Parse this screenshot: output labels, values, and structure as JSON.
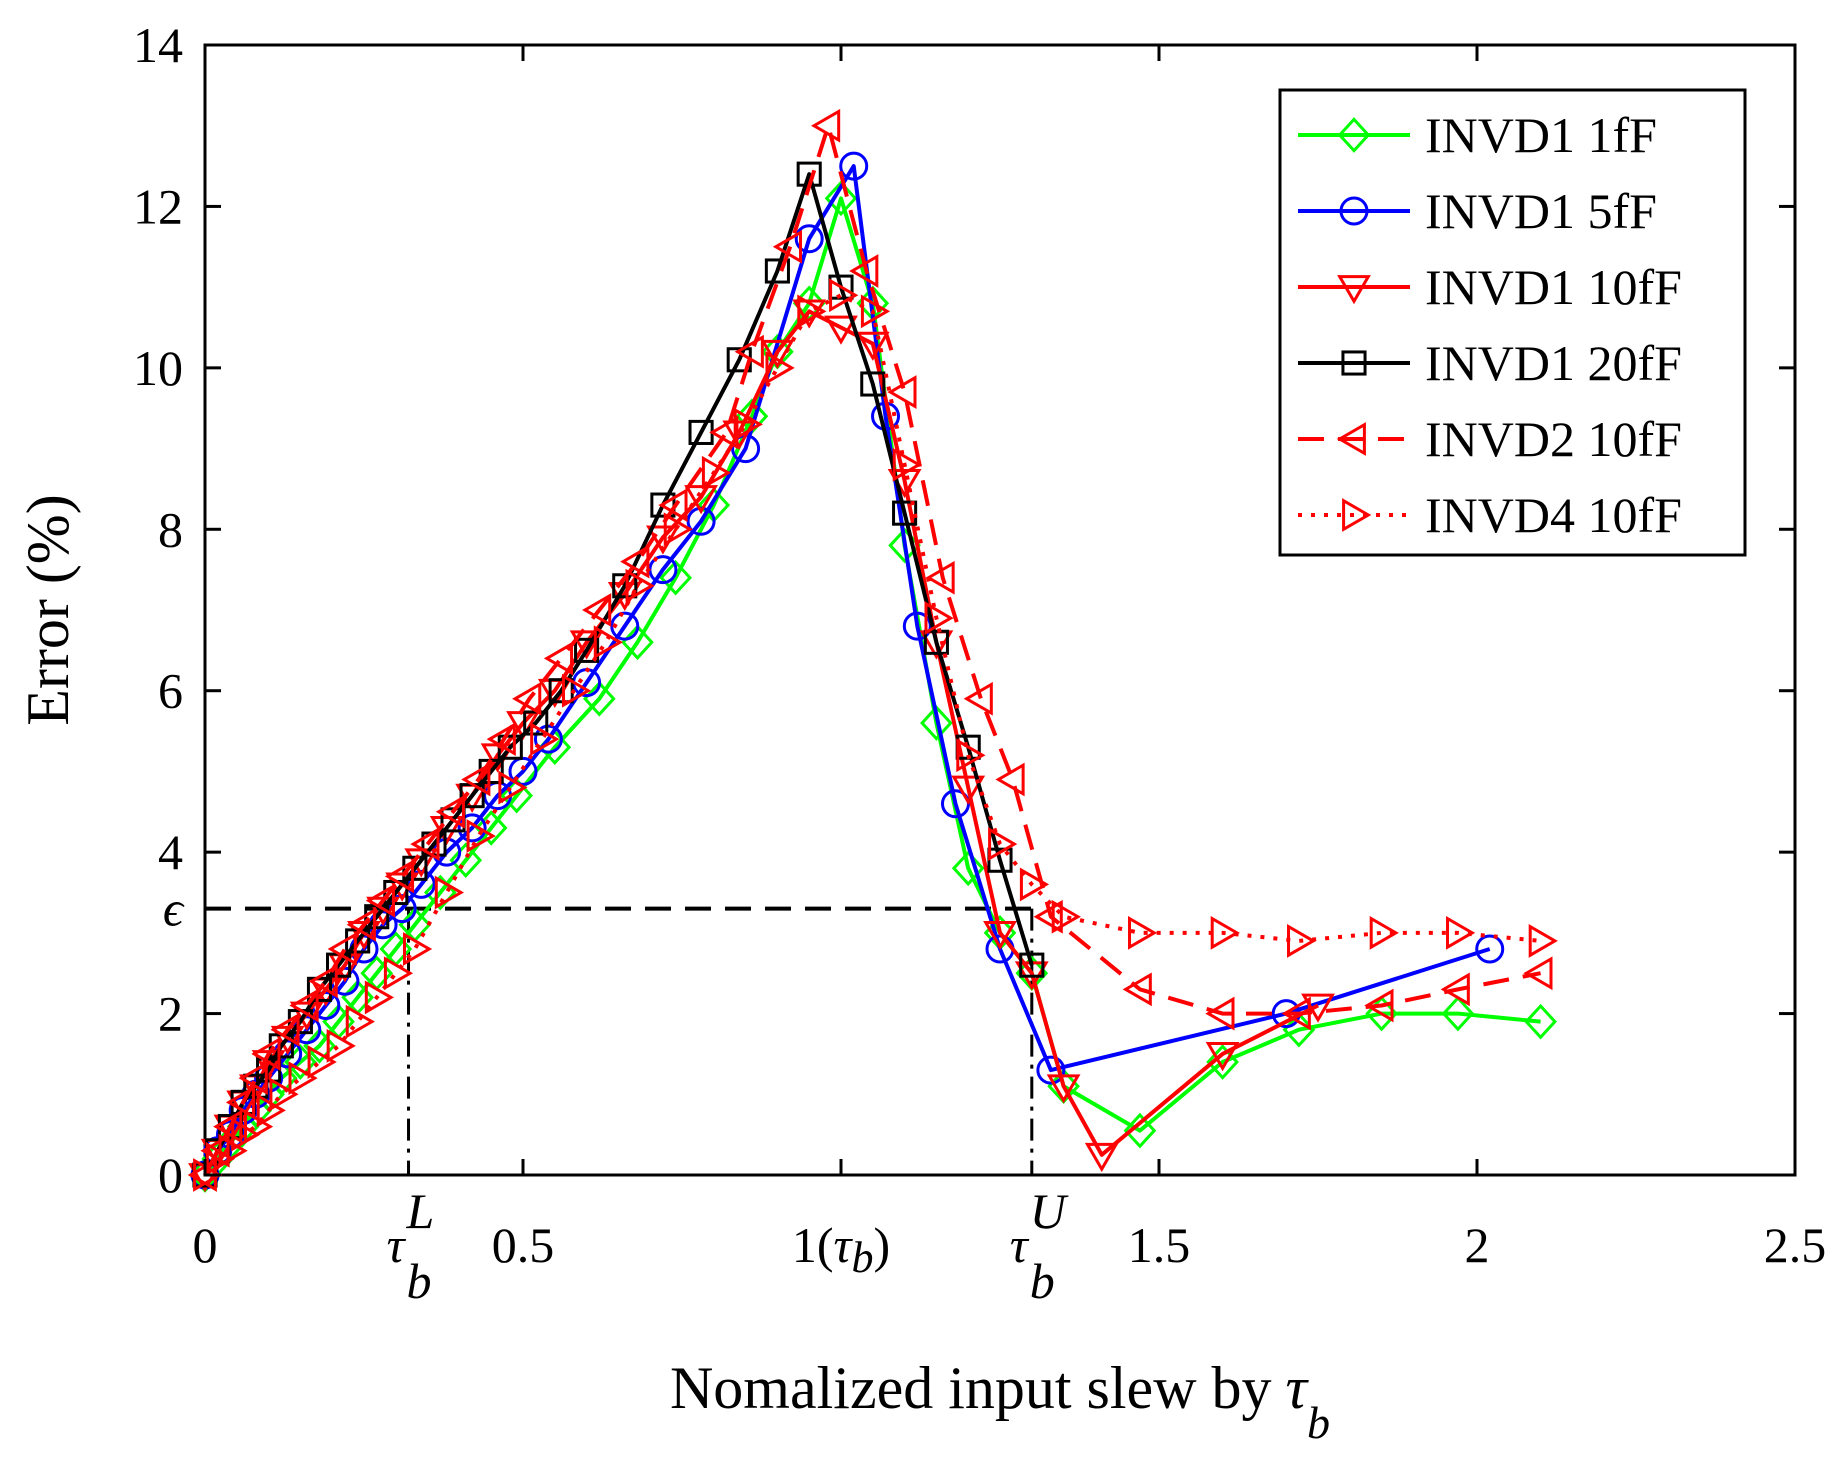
{
  "chart_data": {
    "type": "line",
    "title": "",
    "xlabel": "Nomalized input slew by",
    "xlabel_symbol": "τ",
    "xlabel_subscript": "b",
    "ylabel": "Error (%)",
    "xlim": [
      0,
      2.5
    ],
    "ylim": [
      0,
      14
    ],
    "grid": false,
    "legend_position": "top-right",
    "x_ticks": [
      {
        "value": 0,
        "label": "0"
      },
      {
        "value": 0.5,
        "label": "0.5"
      },
      {
        "value": 1.5,
        "label": "1.5"
      },
      {
        "value": 2,
        "label": "2"
      },
      {
        "value": 2.5,
        "label": "2.5"
      }
    ],
    "x_tick_tau_b": {
      "value": 1,
      "prefix": "1(",
      "symbol": "τ",
      "subscript": "b",
      "suffix": ")"
    },
    "y_ticks": [
      {
        "value": 0,
        "label": "0"
      },
      {
        "value": 2,
        "label": "2"
      },
      {
        "value": 4,
        "label": "4"
      },
      {
        "value": 6,
        "label": "6"
      },
      {
        "value": 8,
        "label": "8"
      },
      {
        "value": 10,
        "label": "10"
      },
      {
        "value": 12,
        "label": "12"
      },
      {
        "value": 14,
        "label": "14"
      }
    ],
    "annotations": {
      "epsilon": {
        "label": "ϵ",
        "y": 3.3
      },
      "tau_lower": {
        "symbol": "τ",
        "superscript": "L",
        "subscript": "b",
        "x": 0.32
      },
      "tau_upper": {
        "symbol": "τ",
        "superscript": "U",
        "subscript": "b",
        "x": 1.3
      }
    },
    "series": [
      {
        "name": "INVD1 1fF",
        "color": "#00ff00",
        "marker": "diamond",
        "dash": "solid",
        "x": [
          0,
          0.02,
          0.04,
          0.06,
          0.08,
          0.1,
          0.12,
          0.15,
          0.18,
          0.21,
          0.24,
          0.27,
          0.3,
          0.33,
          0.37,
          0.41,
          0.45,
          0.49,
          0.55,
          0.62,
          0.68,
          0.74,
          0.8,
          0.86,
          0.9,
          0.95,
          1.0,
          1.05,
          1.1,
          1.15,
          1.2,
          1.25,
          1.3,
          1.35,
          1.47,
          1.6,
          1.72,
          1.85,
          1.97,
          2.1
        ],
        "y": [
          0,
          0.2,
          0.4,
          0.6,
          0.8,
          1.0,
          1.2,
          1.4,
          1.6,
          1.9,
          2.2,
          2.5,
          2.8,
          3.1,
          3.5,
          3.9,
          4.3,
          4.7,
          5.3,
          5.9,
          6.6,
          7.4,
          8.3,
          9.4,
          10.2,
          10.8,
          12.1,
          10.8,
          7.8,
          5.6,
          3.8,
          3.0,
          2.5,
          1.1,
          0.55,
          1.4,
          1.8,
          2.0,
          2.0,
          1.9
        ]
      },
      {
        "name": "INVD1 5fF",
        "color": "#0000ff",
        "marker": "circle",
        "dash": "solid",
        "x": [
          0,
          0.02,
          0.04,
          0.06,
          0.08,
          0.1,
          0.13,
          0.16,
          0.19,
          0.22,
          0.25,
          0.28,
          0.31,
          0.34,
          0.38,
          0.42,
          0.46,
          0.5,
          0.54,
          0.6,
          0.66,
          0.72,
          0.78,
          0.85,
          0.95,
          1.02,
          1.07,
          1.12,
          1.18,
          1.25,
          1.33,
          1.7,
          2.02
        ],
        "y": [
          0,
          0.3,
          0.5,
          0.8,
          1.0,
          1.2,
          1.5,
          1.8,
          2.1,
          2.4,
          2.8,
          3.1,
          3.3,
          3.6,
          4.0,
          4.3,
          4.7,
          5.0,
          5.4,
          6.1,
          6.8,
          7.5,
          8.1,
          9.0,
          11.6,
          12.5,
          9.4,
          6.8,
          4.6,
          2.8,
          1.3,
          2.0,
          2.8
        ]
      },
      {
        "name": "INVD1 10fF",
        "color": "#ff0000",
        "marker": "triangle-down",
        "dash": "solid",
        "x": [
          0,
          0.02,
          0.04,
          0.06,
          0.08,
          0.1,
          0.13,
          0.16,
          0.19,
          0.22,
          0.25,
          0.28,
          0.31,
          0.34,
          0.38,
          0.42,
          0.46,
          0.5,
          0.55,
          0.6,
          0.66,
          0.72,
          0.78,
          0.84,
          0.9,
          0.95,
          1.0,
          1.05,
          1.1,
          1.15,
          1.2,
          1.25,
          1.3,
          1.35,
          1.41,
          1.6,
          1.75
        ],
        "y": [
          0,
          0.3,
          0.6,
          0.9,
          1.1,
          1.4,
          1.7,
          2.0,
          2.3,
          2.6,
          3.0,
          3.3,
          3.6,
          3.9,
          4.3,
          4.7,
          5.2,
          5.6,
          6.0,
          6.6,
          7.2,
          7.9,
          8.4,
          9.2,
          10.2,
          10.7,
          10.5,
          10.3,
          8.6,
          6.6,
          4.8,
          3.0,
          2.5,
          1.1,
          0.25,
          1.5,
          2.1
        ]
      },
      {
        "name": "INVD1 20fF",
        "color": "#000000",
        "marker": "square",
        "dash": "solid",
        "x": [
          0,
          0.02,
          0.04,
          0.06,
          0.08,
          0.1,
          0.12,
          0.15,
          0.18,
          0.21,
          0.24,
          0.27,
          0.3,
          0.33,
          0.36,
          0.39,
          0.42,
          0.45,
          0.48,
          0.52,
          0.56,
          0.6,
          0.66,
          0.72,
          0.78,
          0.84,
          0.9,
          0.95,
          1.0,
          1.05,
          1.1,
          1.15,
          1.2,
          1.25,
          1.3
        ],
        "y": [
          0,
          0.3,
          0.6,
          0.9,
          1.1,
          1.3,
          1.6,
          1.9,
          2.3,
          2.6,
          2.9,
          3.2,
          3.5,
          3.8,
          4.1,
          4.4,
          4.7,
          5.0,
          5.3,
          5.6,
          6.0,
          6.5,
          7.3,
          8.3,
          9.2,
          10.1,
          11.2,
          12.4,
          11.0,
          9.8,
          8.2,
          6.6,
          5.3,
          3.9,
          2.6
        ]
      },
      {
        "name": "INVD2 10fF",
        "color": "#ff0000",
        "marker": "triangle-left",
        "dash": "dashed",
        "x": [
          0,
          0.02,
          0.04,
          0.06,
          0.08,
          0.1,
          0.13,
          0.16,
          0.19,
          0.22,
          0.25,
          0.28,
          0.31,
          0.35,
          0.39,
          0.43,
          0.47,
          0.51,
          0.56,
          0.62,
          0.68,
          0.74,
          0.82,
          0.86,
          0.92,
          0.98,
          1.04,
          1.1,
          1.16,
          1.22,
          1.27,
          1.33,
          1.47,
          1.6,
          1.72,
          1.85,
          1.97,
          2.1
        ],
        "y": [
          0,
          0.3,
          0.6,
          0.9,
          1.2,
          1.5,
          1.8,
          2.1,
          2.4,
          2.8,
          3.1,
          3.4,
          3.7,
          4.1,
          4.5,
          4.9,
          5.4,
          5.9,
          6.4,
          7.0,
          7.6,
          8.3,
          9.2,
          10.2,
          11.5,
          13.0,
          11.2,
          9.7,
          7.4,
          5.9,
          4.9,
          3.2,
          2.3,
          2.0,
          2.0,
          2.1,
          2.3,
          2.5
        ]
      },
      {
        "name": "INVD4 10fF",
        "color": "#ff0000",
        "marker": "triangle-right",
        "dash": "dotted",
        "x": [
          0,
          0.02,
          0.04,
          0.06,
          0.08,
          0.1,
          0.12,
          0.15,
          0.18,
          0.21,
          0.24,
          0.27,
          0.3,
          0.33,
          0.38,
          0.43,
          0.48,
          0.53,
          0.58,
          0.63,
          0.68,
          0.74,
          0.8,
          0.85,
          0.9,
          0.95,
          1.0,
          1.05,
          1.1,
          1.15,
          1.2,
          1.25,
          1.3,
          1.35,
          1.47,
          1.6,
          1.72,
          1.85,
          1.97,
          2.1
        ],
        "y": [
          0,
          0.2,
          0.3,
          0.5,
          0.6,
          0.8,
          1.0,
          1.2,
          1.4,
          1.6,
          1.9,
          2.2,
          2.5,
          2.8,
          3.5,
          4.2,
          4.8,
          5.4,
          6.0,
          6.6,
          7.3,
          8.0,
          8.7,
          9.3,
          10.0,
          10.7,
          10.9,
          10.7,
          8.8,
          6.9,
          5.2,
          4.1,
          3.6,
          3.2,
          3.0,
          3.0,
          2.9,
          3.0,
          3.0,
          2.9
        ]
      }
    ]
  }
}
